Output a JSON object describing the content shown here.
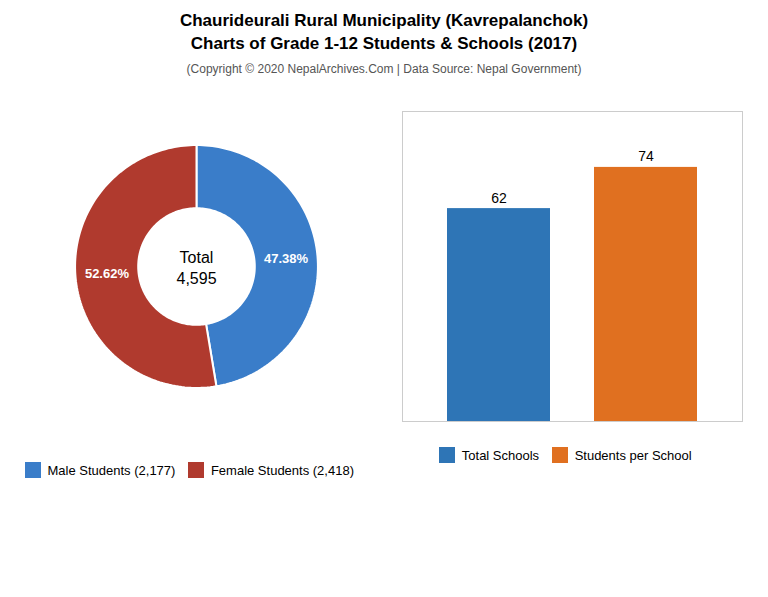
{
  "chart_data": [
    {
      "type": "pie",
      "title": "Chaurideurali Rural Municipality (Kavrepalanchok)\nCharts of Grade 1-12 Students & Schools (2017)",
      "subtitle": "(Copyright © 2020 NepalArchives.Com | Data Source: Nepal Government)",
      "categories": [
        "Male Students (2,177)",
        "Female Students (2,418)"
      ],
      "values": [
        47.38,
        52.62
      ],
      "value_labels": [
        "47.38%",
        "52.62%"
      ],
      "colors": [
        "#3a7dc9",
        "#b03a2e"
      ],
      "annotations": [
        "Total",
        "4,595"
      ],
      "data_labels": true,
      "legend": "bottom"
    },
    {
      "type": "bar",
      "categories": [
        "Total Schools",
        "Students per School"
      ],
      "values": [
        62,
        74
      ],
      "colors": [
        "#2e75b6",
        "#e07020"
      ],
      "ylim": [
        0,
        90.28
      ],
      "tick_labels": false,
      "data_labels": true,
      "legend": "bottom"
    }
  ]
}
